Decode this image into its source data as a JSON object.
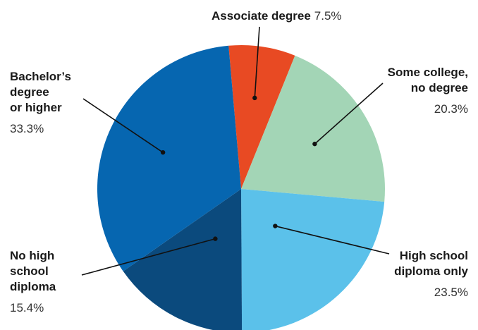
{
  "chart_data": {
    "type": "pie",
    "title": "",
    "slices": [
      {
        "label": "Associate degree",
        "display": "Associate degree",
        "value": 7.5,
        "value_text": "7.5%",
        "color": "#e84a23"
      },
      {
        "label": "Some college, no degree",
        "display": "Some college,\nno degree",
        "value": 20.3,
        "value_text": "20.3%",
        "color": "#a3d5b6"
      },
      {
        "label": "High school diploma only",
        "display": "High school\ndiploma only",
        "value": 23.5,
        "value_text": "23.5%",
        "color": "#5bc1ea"
      },
      {
        "label": "No high school diploma",
        "display": "No high\nschool\ndiploma",
        "value": 15.4,
        "value_text": "15.4%",
        "color": "#0b4a7d"
      },
      {
        "label": "Bachelor's degree or higher",
        "display": "Bachelor’s\ndegree\nor higher",
        "value": 33.3,
        "value_text": "33.3%",
        "color": "#0666b0"
      }
    ]
  }
}
